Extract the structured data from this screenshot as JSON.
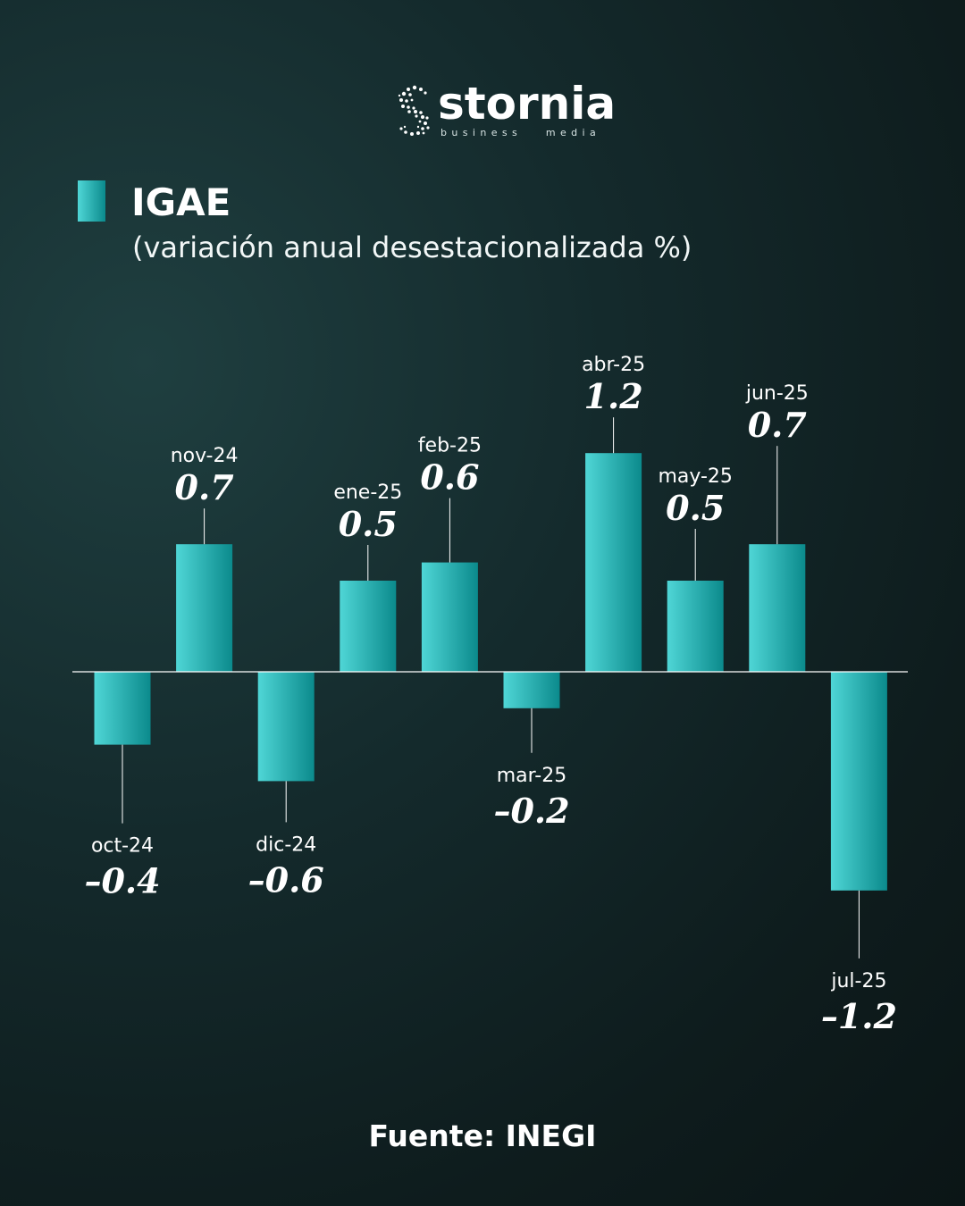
{
  "brand": {
    "name": "stornia",
    "tagline": "business   media"
  },
  "header": {
    "title": "IGAE",
    "subtitle": "(variación anual desestacionalizada %)"
  },
  "footer": {
    "source": "Fuente: INEGI"
  },
  "colors": {
    "bar_light": "#4fd6d6",
    "bar_dark": "#0b8a8c",
    "axis": "#ffffff"
  },
  "chart_data": {
    "type": "bar",
    "title": "IGAE",
    "subtitle": "(variación anual desestacionalizada %)",
    "categories": [
      "oct-24",
      "nov-24",
      "dic-24",
      "ene-25",
      "feb-25",
      "mar-25",
      "abr-25",
      "may-25",
      "jun-25",
      "jul-25"
    ],
    "values": [
      -0.4,
      0.7,
      -0.6,
      0.5,
      0.6,
      -0.2,
      1.2,
      0.5,
      0.7,
      -1.2
    ],
    "value_labels": [
      "–0.4",
      "0.7",
      "–0.6",
      "0.5",
      "0.6",
      "–0.2",
      "1.2",
      "0.5",
      "0.7",
      "–1.2"
    ],
    "xlabel": "",
    "ylabel": "",
    "ylim": [
      -1.2,
      1.2
    ],
    "grid": false,
    "legend": "none"
  }
}
